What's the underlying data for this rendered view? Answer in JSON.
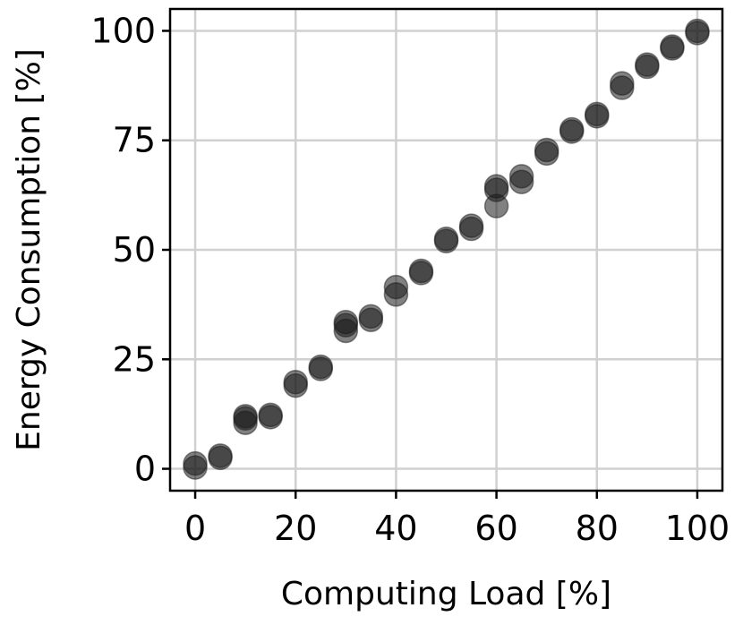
{
  "chart_data": {
    "type": "scatter",
    "title": "",
    "xlabel": "Computing Load [%]",
    "ylabel": "Energy Consumption [%]",
    "xlim": [
      -5,
      105
    ],
    "ylim": [
      -5,
      105
    ],
    "xticks": [
      0,
      20,
      40,
      60,
      80,
      100
    ],
    "yticks": [
      0,
      25,
      50,
      75,
      100
    ],
    "xtick_labels": [
      "0",
      "20",
      "40",
      "60",
      "80",
      "100"
    ],
    "ytick_labels": [
      "0",
      "25",
      "50",
      "75",
      "100"
    ],
    "grid": true,
    "marker_color": "#1a1a1a",
    "grid_color": "#d0d0d0",
    "series": [
      {
        "points": [
          [
            0,
            0.3
          ],
          [
            0,
            1.2
          ],
          [
            5,
            3.0
          ],
          [
            5,
            2.5
          ],
          [
            10,
            10.5
          ],
          [
            10,
            11.5
          ],
          [
            10,
            12.0
          ],
          [
            15,
            12.3
          ],
          [
            15,
            11.8
          ],
          [
            20,
            19.0
          ],
          [
            20,
            19.8
          ],
          [
            25,
            22.8
          ],
          [
            25,
            23.3
          ],
          [
            30,
            31.5
          ],
          [
            30,
            32.8
          ],
          [
            30,
            33.5
          ],
          [
            35,
            34.0
          ],
          [
            35,
            34.8
          ],
          [
            40,
            39.8
          ],
          [
            40,
            41.5
          ],
          [
            45,
            44.7
          ],
          [
            45,
            45.2
          ],
          [
            50,
            52.0
          ],
          [
            50,
            52.5
          ],
          [
            55,
            54.8
          ],
          [
            55,
            55.5
          ],
          [
            60,
            60.0
          ],
          [
            60,
            63.7
          ],
          [
            60,
            64.5
          ],
          [
            65,
            65.5
          ],
          [
            65,
            66.8
          ],
          [
            70,
            72.0
          ],
          [
            70,
            72.8
          ],
          [
            75,
            77.0
          ],
          [
            75,
            77.5
          ],
          [
            80,
            80.5
          ],
          [
            80,
            81.0
          ],
          [
            85,
            87.0
          ],
          [
            85,
            88.0
          ],
          [
            90,
            91.8
          ],
          [
            90,
            92.3
          ],
          [
            95,
            96.0
          ],
          [
            95,
            96.4
          ],
          [
            100,
            99.5
          ],
          [
            100,
            100.0
          ]
        ]
      }
    ]
  }
}
